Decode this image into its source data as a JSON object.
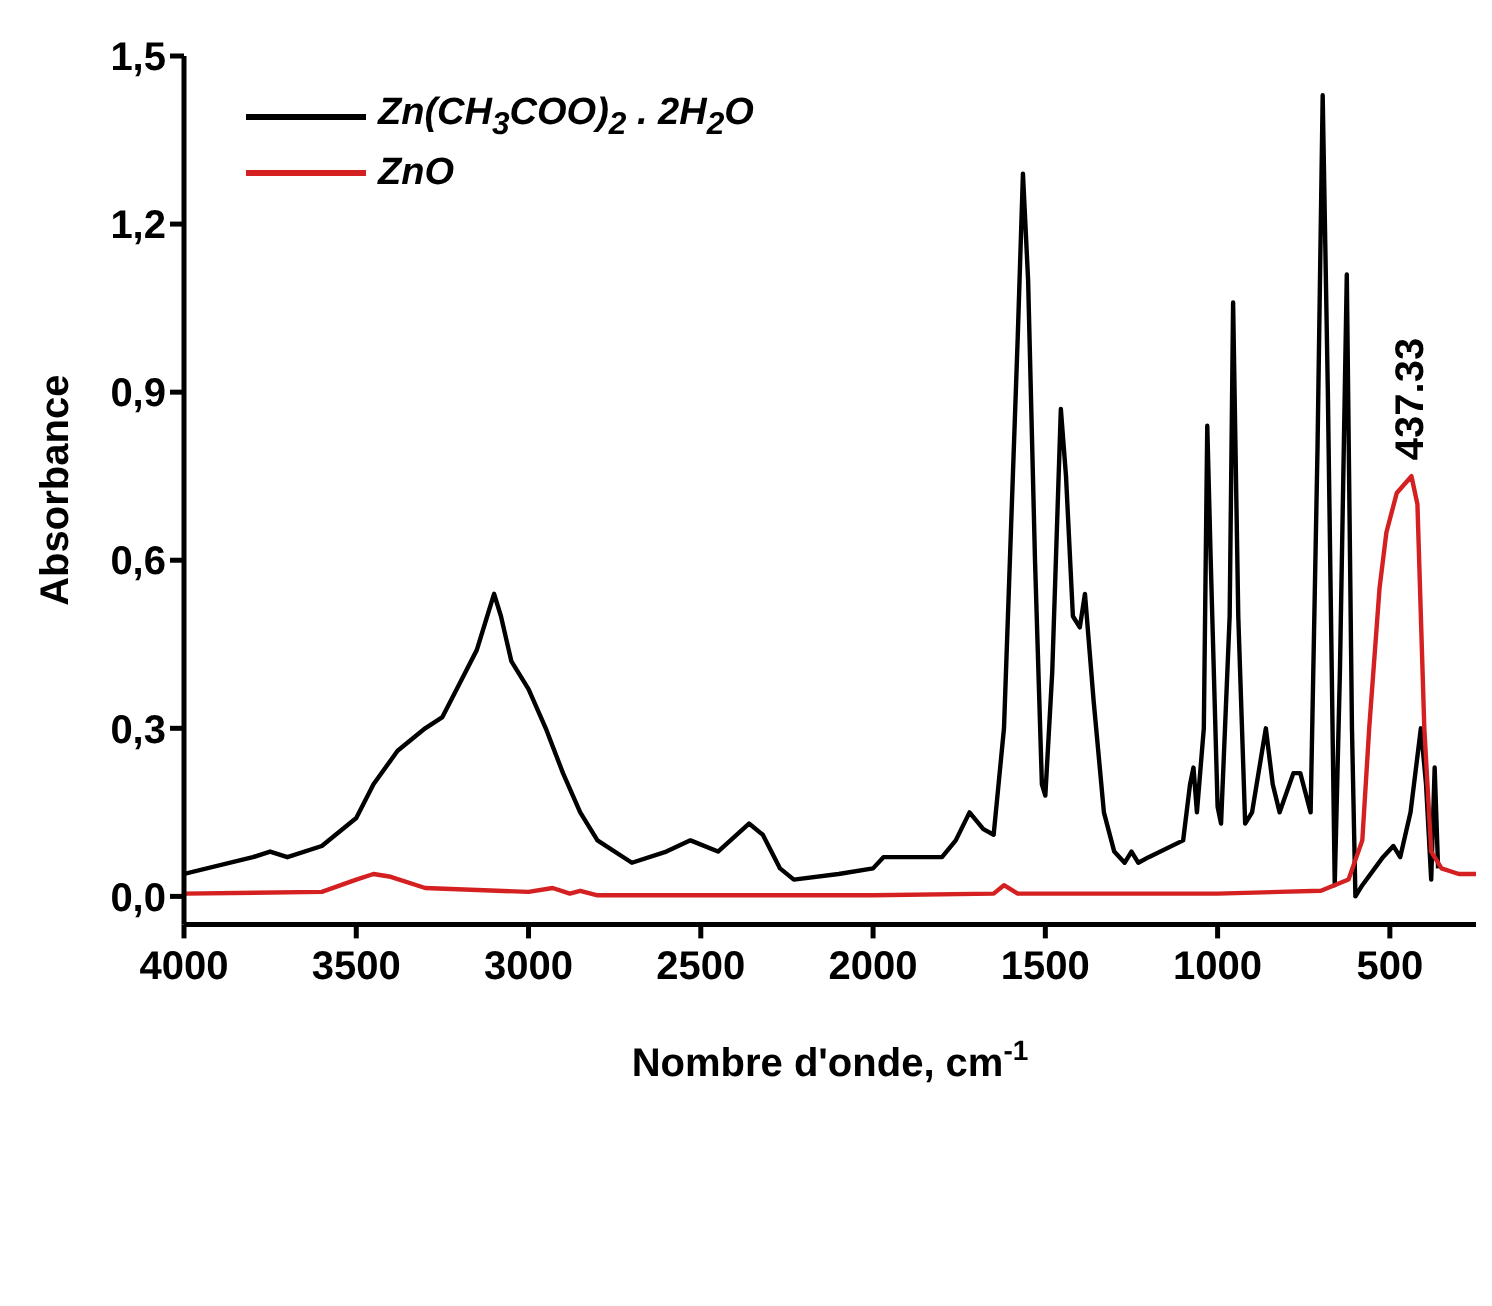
{
  "chart_data": {
    "type": "line",
    "xlabel": "Nombre d'onde, cm$^{-1}$",
    "ylabel": "Absorbance",
    "xlim": [
      4000,
      250
    ],
    "xticks": [
      4000,
      3500,
      3000,
      2500,
      2000,
      1500,
      1000,
      500
    ],
    "ylim": [
      -0.05,
      1.5
    ],
    "yticks": [
      {
        "value": 0,
        "label": "0,0"
      },
      {
        "value": 0.3,
        "label": "0,3"
      },
      {
        "value": 0.6,
        "label": "0,6"
      },
      {
        "value": 0.9,
        "label": "0,9"
      },
      {
        "value": 1.2,
        "label": "1,2"
      },
      {
        "value": 1.5,
        "label": "1,5"
      }
    ],
    "grid": false,
    "legend": "top left",
    "marker": "none",
    "line_style": "solid",
    "annotations": [
      {
        "text": "437.33",
        "x": 437.33,
        "y": 0.75
      }
    ],
    "series": [
      {
        "name": "Zn(CH$_{3}$COO)$_{2}$ . 2H$_{2}$O",
        "color": "#000000",
        "x": [
          4000,
          3800,
          3750,
          3700,
          3600,
          3500,
          3450,
          3380,
          3300,
          3250,
          3200,
          3150,
          3120,
          3100,
          3080,
          3050,
          3000,
          2950,
          2900,
          2850,
          2800,
          2700,
          2600,
          2530,
          2450,
          2360,
          2320,
          2270,
          2230,
          2100,
          2000,
          1970,
          1900,
          1800,
          1760,
          1720,
          1680,
          1650,
          1620,
          1600,
          1580,
          1565,
          1550,
          1530,
          1510,
          1500,
          1480,
          1455,
          1440,
          1420,
          1400,
          1385,
          1360,
          1330,
          1300,
          1270,
          1250,
          1230,
          1200,
          1100,
          1080,
          1070,
          1060,
          1040,
          1030,
          1020,
          1000,
          990,
          965,
          955,
          940,
          920,
          900,
          860,
          840,
          820,
          780,
          760,
          730,
          710,
          695,
          680,
          660,
          645,
          625,
          610,
          600,
          580,
          520,
          490,
          470,
          440,
          410,
          395,
          380,
          370,
          360
        ],
        "values": [
          0.04,
          0.07,
          0.08,
          0.07,
          0.09,
          0.14,
          0.2,
          0.26,
          0.3,
          0.32,
          0.38,
          0.44,
          0.5,
          0.54,
          0.5,
          0.42,
          0.37,
          0.3,
          0.22,
          0.15,
          0.1,
          0.06,
          0.08,
          0.1,
          0.08,
          0.13,
          0.11,
          0.05,
          0.03,
          0.04,
          0.05,
          0.07,
          0.07,
          0.07,
          0.1,
          0.15,
          0.12,
          0.11,
          0.3,
          0.65,
          1.0,
          1.29,
          1.1,
          0.6,
          0.2,
          0.18,
          0.4,
          0.87,
          0.75,
          0.5,
          0.48,
          0.54,
          0.35,
          0.15,
          0.08,
          0.06,
          0.08,
          0.06,
          0.07,
          0.1,
          0.2,
          0.23,
          0.15,
          0.3,
          0.84,
          0.6,
          0.16,
          0.13,
          0.5,
          1.06,
          0.5,
          0.13,
          0.15,
          0.3,
          0.2,
          0.15,
          0.22,
          0.22,
          0.15,
          0.8,
          1.43,
          0.9,
          0.02,
          0.4,
          1.11,
          0.3,
          0.0,
          0.02,
          0.07,
          0.09,
          0.07,
          0.15,
          0.3,
          0.2,
          0.03,
          0.23,
          0.05
        ]
      },
      {
        "name": "ZnO",
        "color": "#d42020",
        "x": [
          4000,
          3600,
          3500,
          3450,
          3400,
          3300,
          3000,
          2930,
          2880,
          2850,
          2800,
          2000,
          1650,
          1620,
          1580,
          1000,
          700,
          620,
          580,
          560,
          530,
          510,
          480,
          437.33,
          420,
          400,
          380,
          350,
          300,
          250
        ],
        "values": [
          0.005,
          0.008,
          0.03,
          0.04,
          0.035,
          0.015,
          0.008,
          0.015,
          0.005,
          0.01,
          0.002,
          0.002,
          0.005,
          0.02,
          0.005,
          0.005,
          0.01,
          0.03,
          0.1,
          0.3,
          0.55,
          0.65,
          0.72,
          0.75,
          0.7,
          0.3,
          0.08,
          0.05,
          0.04,
          0.04
        ]
      }
    ]
  }
}
